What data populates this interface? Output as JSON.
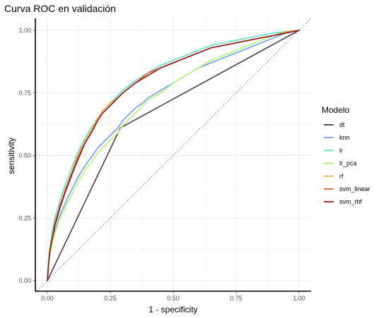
{
  "chart_data": {
    "type": "line",
    "title": "Curva ROC en validación",
    "xlabel": "1 - specificity",
    "ylabel": "sensitivity",
    "xlim": [
      0,
      1
    ],
    "ylim": [
      0,
      1
    ],
    "xticks": [
      "0.00",
      "0.25",
      "0.50",
      "0.75",
      "1.00"
    ],
    "yticks": [
      "0.00",
      "0.25",
      "0.50",
      "0.75",
      "1.00"
    ],
    "grid": true,
    "legend": {
      "title": "Modelo",
      "placement": "right"
    },
    "reference_line": {
      "style": "dotted",
      "x": [
        0,
        1
      ],
      "y": [
        0,
        1
      ]
    },
    "series": [
      {
        "name": "dt",
        "color": "#4d3a4f",
        "x": [
          0,
          0.29,
          1
        ],
        "y": [
          0,
          0.61,
          1
        ]
      },
      {
        "name": "knn",
        "color": "#6f9fe5",
        "x": [
          0,
          0.005,
          0.01,
          0.02,
          0.03,
          0.05,
          0.08,
          0.1,
          0.12,
          0.15,
          0.18,
          0.2,
          0.22,
          0.25,
          0.28,
          0.3,
          0.32,
          0.35,
          0.38,
          0.4,
          0.45,
          0.5,
          0.55,
          0.6,
          0.65,
          0.7,
          0.75,
          0.8,
          0.85,
          0.9,
          0.95,
          1
        ],
        "y": [
          0,
          0.07,
          0.11,
          0.16,
          0.2,
          0.26,
          0.33,
          0.37,
          0.41,
          0.46,
          0.5,
          0.53,
          0.55,
          0.58,
          0.61,
          0.64,
          0.66,
          0.69,
          0.71,
          0.73,
          0.76,
          0.79,
          0.82,
          0.85,
          0.87,
          0.89,
          0.91,
          0.93,
          0.95,
          0.97,
          0.99,
          1
        ]
      },
      {
        "name": "lr",
        "color": "#62e0c0",
        "x": [
          0,
          0.005,
          0.01,
          0.02,
          0.03,
          0.05,
          0.07,
          0.1,
          0.12,
          0.15,
          0.18,
          0.2,
          0.22,
          0.25,
          0.28,
          0.3,
          0.35,
          0.4,
          0.45,
          0.5,
          0.55,
          0.6,
          0.65,
          0.7,
          0.75,
          0.8,
          0.85,
          0.9,
          0.95,
          1
        ],
        "y": [
          0,
          0.08,
          0.13,
          0.2,
          0.25,
          0.32,
          0.38,
          0.46,
          0.51,
          0.57,
          0.62,
          0.65,
          0.68,
          0.71,
          0.74,
          0.76,
          0.8,
          0.83,
          0.86,
          0.88,
          0.9,
          0.92,
          0.94,
          0.95,
          0.96,
          0.97,
          0.98,
          0.99,
          0.995,
          1
        ]
      },
      {
        "name": "lr_pca",
        "color": "#b2f27a",
        "x": [
          0,
          0.005,
          0.01,
          0.02,
          0.03,
          0.05,
          0.08,
          0.1,
          0.12,
          0.15,
          0.18,
          0.2,
          0.22,
          0.25,
          0.28,
          0.3,
          0.32,
          0.35,
          0.4,
          0.45,
          0.5,
          0.55,
          0.6,
          0.65,
          0.7,
          0.75,
          0.8,
          0.85,
          0.9,
          0.95,
          1
        ],
        "y": [
          0,
          0.06,
          0.1,
          0.15,
          0.19,
          0.25,
          0.31,
          0.35,
          0.39,
          0.44,
          0.48,
          0.51,
          0.53,
          0.56,
          0.59,
          0.62,
          0.64,
          0.67,
          0.72,
          0.75,
          0.79,
          0.82,
          0.85,
          0.88,
          0.9,
          0.92,
          0.94,
          0.96,
          0.98,
          0.99,
          1
        ]
      },
      {
        "name": "rf",
        "color": "#f0b25a",
        "x": [
          0,
          0.005,
          0.01,
          0.02,
          0.03,
          0.05,
          0.07,
          0.1,
          0.12,
          0.15,
          0.18,
          0.2,
          0.22,
          0.25,
          0.28,
          0.3,
          0.35,
          0.4,
          0.45,
          0.5,
          0.55,
          0.6,
          0.65,
          0.7,
          0.75,
          0.8,
          0.85,
          0.9,
          0.95,
          1
        ],
        "y": [
          0,
          0.07,
          0.11,
          0.17,
          0.22,
          0.29,
          0.36,
          0.44,
          0.5,
          0.56,
          0.61,
          0.65,
          0.68,
          0.71,
          0.73,
          0.75,
          0.79,
          0.82,
          0.85,
          0.87,
          0.89,
          0.91,
          0.93,
          0.94,
          0.95,
          0.96,
          0.97,
          0.98,
          0.995,
          1
        ]
      },
      {
        "name": "svm_linear",
        "color": "#e3663f",
        "x": [
          0,
          0.005,
          0.01,
          0.02,
          0.03,
          0.05,
          0.07,
          0.1,
          0.12,
          0.15,
          0.18,
          0.2,
          0.22,
          0.25,
          0.28,
          0.3,
          0.35,
          0.4,
          0.45,
          0.5,
          0.55,
          0.6,
          0.65,
          0.7,
          0.75,
          0.8,
          0.85,
          0.9,
          0.95,
          1
        ],
        "y": [
          0,
          0.07,
          0.12,
          0.18,
          0.23,
          0.3,
          0.36,
          0.44,
          0.49,
          0.55,
          0.6,
          0.64,
          0.67,
          0.7,
          0.73,
          0.75,
          0.79,
          0.83,
          0.85,
          0.87,
          0.89,
          0.91,
          0.93,
          0.94,
          0.95,
          0.96,
          0.97,
          0.98,
          0.99,
          1
        ]
      },
      {
        "name": "svm_rbf",
        "color": "#8b1a1a",
        "x": [
          0,
          0.005,
          0.01,
          0.02,
          0.03,
          0.05,
          0.07,
          0.1,
          0.12,
          0.15,
          0.18,
          0.2,
          0.22,
          0.25,
          0.28,
          0.3,
          0.35,
          0.4,
          0.45,
          0.5,
          0.55,
          0.6,
          0.65,
          0.7,
          0.75,
          0.8,
          0.85,
          0.9,
          0.95,
          1
        ],
        "y": [
          0,
          0.07,
          0.12,
          0.17,
          0.22,
          0.29,
          0.35,
          0.43,
          0.48,
          0.55,
          0.6,
          0.64,
          0.67,
          0.7,
          0.73,
          0.75,
          0.79,
          0.82,
          0.85,
          0.87,
          0.89,
          0.91,
          0.93,
          0.94,
          0.95,
          0.96,
          0.97,
          0.98,
          0.99,
          1
        ]
      }
    ]
  }
}
